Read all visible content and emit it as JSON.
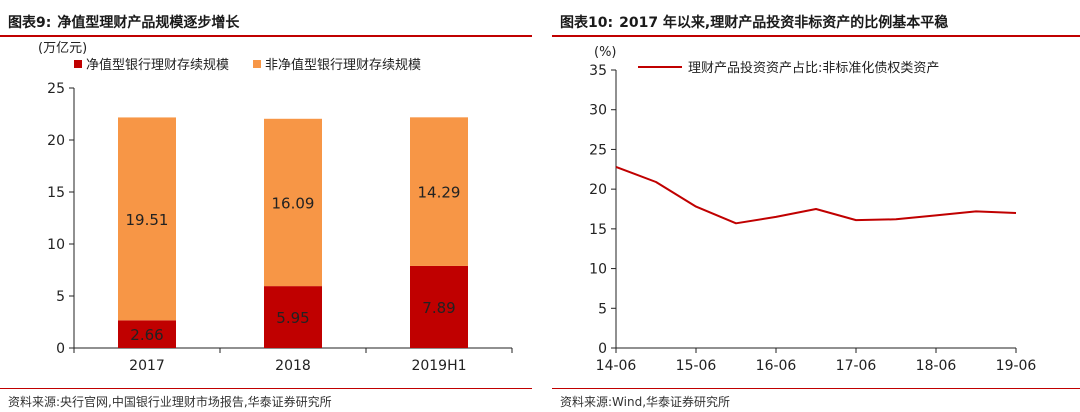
{
  "left": {
    "fig_number": "图表9:",
    "title": "净值型理财产品规模逐步增长",
    "source": "资料来源:央行官网,中国银行业理财市场报告,华泰证券研究所"
  },
  "right": {
    "fig_number": "图表10:",
    "title": "2017 年以来,理财产品投资非标资产的比例基本平稳",
    "source": "资料来源:Wind,华泰证券研究所"
  },
  "chart_data": [
    {
      "type": "bar",
      "stacked": true,
      "ylabel": "(万亿元)",
      "ylim": [
        0,
        25
      ],
      "yticks": [
        0,
        5,
        10,
        15,
        20,
        25
      ],
      "categories": [
        "2017",
        "2018",
        "2019H1"
      ],
      "series": [
        {
          "name": "净值型银行理财存续规模",
          "color": "#c00000",
          "values": [
            2.66,
            5.95,
            7.89
          ],
          "labels": [
            "2.66",
            "5.95",
            "7.89"
          ]
        },
        {
          "name": "非净值型银行理财存续规模",
          "color": "#f79646",
          "values": [
            19.51,
            16.09,
            14.29
          ],
          "labels": [
            "19.51",
            "16.09",
            "14.29"
          ]
        }
      ],
      "legend": "top-left",
      "grid": false
    },
    {
      "type": "line",
      "ylabel": "(%)",
      "ylim": [
        0,
        35
      ],
      "yticks": [
        0,
        5,
        10,
        15,
        20,
        25,
        30,
        35
      ],
      "xticks": [
        "14-06",
        "15-06",
        "16-06",
        "17-06",
        "18-06",
        "19-06"
      ],
      "x": [
        "14-06",
        "14-12",
        "15-06",
        "15-12",
        "16-06",
        "16-12",
        "17-06",
        "17-12",
        "18-06",
        "18-12",
        "19-06"
      ],
      "series": [
        {
          "name": "理财产品投资资产占比:非标准化债权类资产",
          "color": "#c00000",
          "values": [
            22.8,
            20.9,
            17.8,
            15.7,
            16.5,
            17.5,
            16.1,
            16.2,
            16.7,
            17.2,
            17.0
          ]
        }
      ],
      "legend": "top",
      "grid": false
    }
  ]
}
